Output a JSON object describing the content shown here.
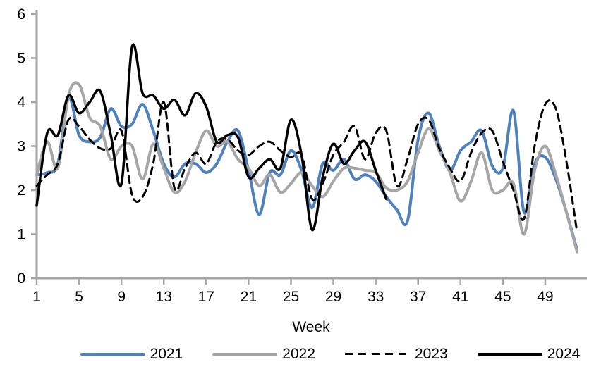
{
  "chart_data": {
    "type": "line",
    "title": "",
    "xlabel": "Week",
    "ylabel": "",
    "xlim": [
      1,
      52
    ],
    "ylim": [
      0,
      6
    ],
    "x_ticks": [
      1,
      5,
      9,
      13,
      17,
      21,
      25,
      29,
      33,
      37,
      41,
      45,
      49
    ],
    "y_ticks": [
      0,
      1,
      2,
      3,
      4,
      5,
      6
    ],
    "grid": false,
    "legend_position": "bottom",
    "axis_color": "#A6A6A6",
    "text_color": "#000000",
    "x": [
      1,
      2,
      3,
      4,
      5,
      6,
      7,
      8,
      9,
      10,
      11,
      12,
      13,
      14,
      15,
      16,
      17,
      18,
      19,
      20,
      21,
      22,
      23,
      24,
      25,
      26,
      27,
      28,
      29,
      30,
      31,
      32,
      33,
      34,
      35,
      36,
      37,
      38,
      39,
      40,
      41,
      42,
      43,
      44,
      45,
      46,
      47,
      48,
      49,
      50,
      51,
      52
    ],
    "series": [
      {
        "name": "2021",
        "color": "#4F81BD",
        "style": "solid",
        "width": 4,
        "values": [
          2.35,
          2.4,
          2.6,
          4.1,
          3.25,
          3.1,
          3.2,
          3.85,
          3.45,
          3.5,
          3.95,
          3.35,
          2.6,
          2.3,
          2.6,
          2.6,
          2.4,
          2.6,
          3.1,
          3.35,
          2.45,
          1.45,
          2.4,
          2.35,
          2.9,
          2.45,
          1.6,
          2.6,
          2.45,
          2.7,
          2.25,
          2.35,
          2.2,
          1.85,
          1.55,
          1.3,
          3.15,
          3.75,
          3.0,
          2.45,
          2.9,
          3.1,
          3.35,
          2.55,
          2.5,
          3.8,
          1.5,
          2.6,
          2.75,
          2.25,
          1.5,
          0.65
        ]
      },
      {
        "name": "2022",
        "color": "#A6A6A6",
        "style": "solid",
        "width": 4,
        "values": [
          2.35,
          3.1,
          2.5,
          4.15,
          4.4,
          3.65,
          3.45,
          2.7,
          3.0,
          3.0,
          2.25,
          3.05,
          2.5,
          1.95,
          2.2,
          2.85,
          3.35,
          3.0,
          3.1,
          2.7,
          2.5,
          2.1,
          2.35,
          1.95,
          2.15,
          2.4,
          2.1,
          1.85,
          2.2,
          2.5,
          2.5,
          2.45,
          2.4,
          2.05,
          2.0,
          2.2,
          2.85,
          3.4,
          2.9,
          2.4,
          1.75,
          2.2,
          2.85,
          2.0,
          2.0,
          2.15,
          1.0,
          2.45,
          3.0,
          2.35,
          1.5,
          0.6
        ]
      },
      {
        "name": "2023",
        "color": "#000000",
        "style": "dashed",
        "width": 3,
        "values": [
          2.1,
          2.35,
          2.6,
          3.6,
          3.45,
          3.15,
          2.95,
          2.95,
          3.35,
          1.9,
          1.85,
          2.6,
          4.0,
          2.05,
          2.5,
          2.85,
          2.6,
          3.1,
          3.15,
          2.9,
          2.8,
          3.0,
          3.1,
          2.9,
          2.75,
          2.8,
          1.8,
          2.15,
          2.8,
          3.1,
          3.45,
          2.7,
          3.3,
          3.35,
          2.1,
          2.7,
          3.5,
          3.6,
          2.95,
          2.5,
          2.2,
          2.85,
          3.3,
          3.35,
          2.65,
          2.0,
          1.35,
          3.0,
          3.95,
          3.85,
          2.65,
          1.05
        ]
      },
      {
        "name": "2024",
        "color": "#000000",
        "style": "solid",
        "width": 3.5,
        "values": [
          1.65,
          3.3,
          3.25,
          4.15,
          3.75,
          4.0,
          4.25,
          3.25,
          2.15,
          5.25,
          4.2,
          4.15,
          3.85,
          4.05,
          3.7,
          4.2,
          3.9,
          3.1,
          3.25,
          3.2,
          2.3,
          2.5,
          2.7,
          2.5,
          3.6,
          2.8,
          1.1,
          2.3,
          3.05,
          2.6,
          2.9,
          3.1,
          2.45,
          1.8,
          null,
          null,
          null,
          null,
          null,
          null,
          null,
          null,
          null,
          null,
          null,
          null,
          null,
          null,
          null,
          null,
          null,
          null
        ]
      }
    ]
  }
}
